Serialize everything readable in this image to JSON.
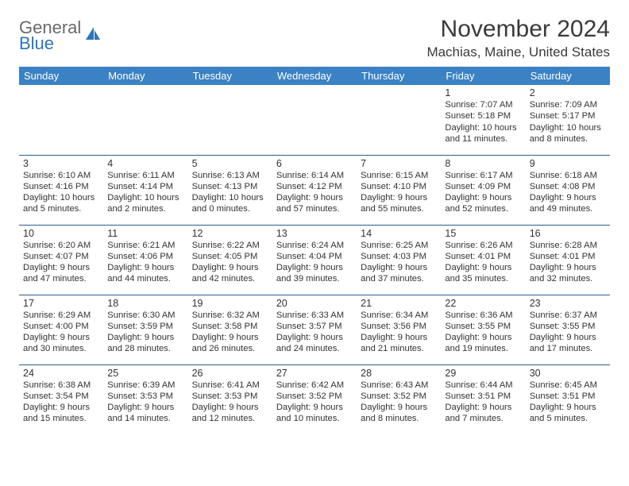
{
  "logo": {
    "line1": "General",
    "line2": "Blue"
  },
  "title": "November 2024",
  "location": "Machias, Maine, United States",
  "weekdays": [
    "Sunday",
    "Monday",
    "Tuesday",
    "Wednesday",
    "Thursday",
    "Friday",
    "Saturday"
  ],
  "colors": {
    "header_bg": "#3b82c4",
    "header_fg": "#ffffff",
    "border": "#2f5e8c",
    "logo_gray": "#6a6a6a",
    "logo_blue": "#2f74b5"
  },
  "days": [
    {
      "n": "",
      "sr": "",
      "ss": "",
      "dl": ""
    },
    {
      "n": "",
      "sr": "",
      "ss": "",
      "dl": ""
    },
    {
      "n": "",
      "sr": "",
      "ss": "",
      "dl": ""
    },
    {
      "n": "",
      "sr": "",
      "ss": "",
      "dl": ""
    },
    {
      "n": "",
      "sr": "",
      "ss": "",
      "dl": ""
    },
    {
      "n": "1",
      "sr": "Sunrise: 7:07 AM",
      "ss": "Sunset: 5:18 PM",
      "dl": "Daylight: 10 hours and 11 minutes."
    },
    {
      "n": "2",
      "sr": "Sunrise: 7:09 AM",
      "ss": "Sunset: 5:17 PM",
      "dl": "Daylight: 10 hours and 8 minutes."
    },
    {
      "n": "3",
      "sr": "Sunrise: 6:10 AM",
      "ss": "Sunset: 4:16 PM",
      "dl": "Daylight: 10 hours and 5 minutes."
    },
    {
      "n": "4",
      "sr": "Sunrise: 6:11 AM",
      "ss": "Sunset: 4:14 PM",
      "dl": "Daylight: 10 hours and 2 minutes."
    },
    {
      "n": "5",
      "sr": "Sunrise: 6:13 AM",
      "ss": "Sunset: 4:13 PM",
      "dl": "Daylight: 10 hours and 0 minutes."
    },
    {
      "n": "6",
      "sr": "Sunrise: 6:14 AM",
      "ss": "Sunset: 4:12 PM",
      "dl": "Daylight: 9 hours and 57 minutes."
    },
    {
      "n": "7",
      "sr": "Sunrise: 6:15 AM",
      "ss": "Sunset: 4:10 PM",
      "dl": "Daylight: 9 hours and 55 minutes."
    },
    {
      "n": "8",
      "sr": "Sunrise: 6:17 AM",
      "ss": "Sunset: 4:09 PM",
      "dl": "Daylight: 9 hours and 52 minutes."
    },
    {
      "n": "9",
      "sr": "Sunrise: 6:18 AM",
      "ss": "Sunset: 4:08 PM",
      "dl": "Daylight: 9 hours and 49 minutes."
    },
    {
      "n": "10",
      "sr": "Sunrise: 6:20 AM",
      "ss": "Sunset: 4:07 PM",
      "dl": "Daylight: 9 hours and 47 minutes."
    },
    {
      "n": "11",
      "sr": "Sunrise: 6:21 AM",
      "ss": "Sunset: 4:06 PM",
      "dl": "Daylight: 9 hours and 44 minutes."
    },
    {
      "n": "12",
      "sr": "Sunrise: 6:22 AM",
      "ss": "Sunset: 4:05 PM",
      "dl": "Daylight: 9 hours and 42 minutes."
    },
    {
      "n": "13",
      "sr": "Sunrise: 6:24 AM",
      "ss": "Sunset: 4:04 PM",
      "dl": "Daylight: 9 hours and 39 minutes."
    },
    {
      "n": "14",
      "sr": "Sunrise: 6:25 AM",
      "ss": "Sunset: 4:03 PM",
      "dl": "Daylight: 9 hours and 37 minutes."
    },
    {
      "n": "15",
      "sr": "Sunrise: 6:26 AM",
      "ss": "Sunset: 4:01 PM",
      "dl": "Daylight: 9 hours and 35 minutes."
    },
    {
      "n": "16",
      "sr": "Sunrise: 6:28 AM",
      "ss": "Sunset: 4:01 PM",
      "dl": "Daylight: 9 hours and 32 minutes."
    },
    {
      "n": "17",
      "sr": "Sunrise: 6:29 AM",
      "ss": "Sunset: 4:00 PM",
      "dl": "Daylight: 9 hours and 30 minutes."
    },
    {
      "n": "18",
      "sr": "Sunrise: 6:30 AM",
      "ss": "Sunset: 3:59 PM",
      "dl": "Daylight: 9 hours and 28 minutes."
    },
    {
      "n": "19",
      "sr": "Sunrise: 6:32 AM",
      "ss": "Sunset: 3:58 PM",
      "dl": "Daylight: 9 hours and 26 minutes."
    },
    {
      "n": "20",
      "sr": "Sunrise: 6:33 AM",
      "ss": "Sunset: 3:57 PM",
      "dl": "Daylight: 9 hours and 24 minutes."
    },
    {
      "n": "21",
      "sr": "Sunrise: 6:34 AM",
      "ss": "Sunset: 3:56 PM",
      "dl": "Daylight: 9 hours and 21 minutes."
    },
    {
      "n": "22",
      "sr": "Sunrise: 6:36 AM",
      "ss": "Sunset: 3:55 PM",
      "dl": "Daylight: 9 hours and 19 minutes."
    },
    {
      "n": "23",
      "sr": "Sunrise: 6:37 AM",
      "ss": "Sunset: 3:55 PM",
      "dl": "Daylight: 9 hours and 17 minutes."
    },
    {
      "n": "24",
      "sr": "Sunrise: 6:38 AM",
      "ss": "Sunset: 3:54 PM",
      "dl": "Daylight: 9 hours and 15 minutes."
    },
    {
      "n": "25",
      "sr": "Sunrise: 6:39 AM",
      "ss": "Sunset: 3:53 PM",
      "dl": "Daylight: 9 hours and 14 minutes."
    },
    {
      "n": "26",
      "sr": "Sunrise: 6:41 AM",
      "ss": "Sunset: 3:53 PM",
      "dl": "Daylight: 9 hours and 12 minutes."
    },
    {
      "n": "27",
      "sr": "Sunrise: 6:42 AM",
      "ss": "Sunset: 3:52 PM",
      "dl": "Daylight: 9 hours and 10 minutes."
    },
    {
      "n": "28",
      "sr": "Sunrise: 6:43 AM",
      "ss": "Sunset: 3:52 PM",
      "dl": "Daylight: 9 hours and 8 minutes."
    },
    {
      "n": "29",
      "sr": "Sunrise: 6:44 AM",
      "ss": "Sunset: 3:51 PM",
      "dl": "Daylight: 9 hours and 7 minutes."
    },
    {
      "n": "30",
      "sr": "Sunrise: 6:45 AM",
      "ss": "Sunset: 3:51 PM",
      "dl": "Daylight: 9 hours and 5 minutes."
    }
  ]
}
